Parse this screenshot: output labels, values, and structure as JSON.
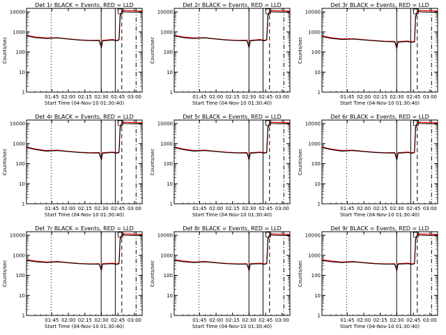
{
  "chart_data": {
    "type": "line",
    "panel_grid": "3x3",
    "x_tick_labels": [
      "01:45",
      "02:00",
      "02:15",
      "02:30",
      "02:45",
      "03:00"
    ],
    "x_tick_minutes": [
      15,
      30,
      45,
      60,
      75,
      90
    ],
    "x_range_minutes": [
      -8,
      97
    ],
    "xlabel": "Start Time (04-Nov-10 01:30:40)",
    "ylabel": "Counts/sec",
    "y_scale": "log",
    "y_range": [
      1,
      15000
    ],
    "y_tick_values": [
      1,
      10,
      100,
      1000,
      10000
    ],
    "y_tick_labels": [
      "1",
      "10",
      "100",
      "1000",
      "10000"
    ],
    "series_colors": {
      "events": "#000000",
      "lld": "#dd0000"
    },
    "vertical_markers": [
      {
        "minute": 14.4,
        "style": "dotted"
      },
      {
        "minute": 59.8,
        "style": "solid"
      },
      {
        "minute": 72.6,
        "style": "solid"
      },
      {
        "minute": 78.5,
        "style": "dashed"
      },
      {
        "minute": 91.5,
        "style": "dashdot"
      }
    ],
    "panels": [
      {
        "title": "Det 1r  BLACK = Events, RED = LLD",
        "curve_x": [
          -8,
          0,
          10,
          20,
          30,
          40,
          50,
          58,
          60,
          61,
          70,
          74,
          76,
          77,
          79,
          82,
          97
        ],
        "events_y": [
          640,
          520,
          470,
          500,
          440,
          390,
          370,
          370,
          160,
          360,
          390,
          360,
          400,
          6000,
          10500,
          10000,
          9500
        ],
        "lld_y": [
          680,
          560,
          500,
          520,
          450,
          400,
          380,
          390,
          180,
          380,
          420,
          380,
          420,
          7000,
          12000,
          11500,
          11000
        ]
      },
      {
        "title": "Det 2r  BLACK = Events, RED = LLD",
        "curve_x": [
          -8,
          0,
          10,
          20,
          30,
          40,
          50,
          58,
          60,
          61,
          70,
          74,
          76,
          77,
          79,
          82,
          97
        ],
        "events_y": [
          640,
          520,
          470,
          500,
          440,
          390,
          370,
          370,
          160,
          360,
          390,
          360,
          400,
          6000,
          10500,
          10000,
          9500
        ],
        "lld_y": [
          680,
          560,
          500,
          520,
          450,
          400,
          380,
          390,
          180,
          380,
          420,
          380,
          420,
          7000,
          12000,
          11500,
          11000
        ]
      },
      {
        "title": "Det 3r  BLACK = Events, RED = LLD",
        "curve_x": [
          -8,
          0,
          10,
          20,
          30,
          40,
          50,
          58,
          60,
          61,
          70,
          74,
          76,
          77,
          79,
          82,
          97
        ],
        "events_y": [
          600,
          480,
          420,
          440,
          400,
          360,
          330,
          320,
          150,
          310,
          330,
          300,
          320,
          5500,
          10500,
          10000,
          9500
        ],
        "lld_y": [
          640,
          520,
          450,
          460,
          410,
          370,
          340,
          340,
          170,
          330,
          350,
          320,
          340,
          6500,
          12000,
          11500,
          11000
        ]
      },
      {
        "title": "Det 4r  BLACK = Events, RED = LLD",
        "curve_x": [
          -8,
          0,
          10,
          20,
          30,
          40,
          50,
          58,
          60,
          61,
          70,
          74,
          76,
          77,
          79,
          82,
          97
        ],
        "events_y": [
          640,
          500,
          420,
          450,
          400,
          360,
          340,
          340,
          150,
          330,
          360,
          330,
          360,
          6000,
          10500,
          10000,
          9500
        ],
        "lld_y": [
          680,
          540,
          450,
          470,
          410,
          370,
          350,
          360,
          170,
          350,
          380,
          350,
          380,
          7000,
          12000,
          11500,
          11000
        ]
      },
      {
        "title": "Det 5r  BLACK = Events, RED = LLD",
        "curve_x": [
          -8,
          0,
          10,
          20,
          30,
          40,
          50,
          58,
          60,
          61,
          70,
          74,
          76,
          77,
          79,
          82,
          97
        ],
        "events_y": [
          640,
          500,
          420,
          450,
          400,
          360,
          340,
          340,
          150,
          330,
          360,
          330,
          360,
          6000,
          10500,
          10000,
          9500
        ],
        "lld_y": [
          680,
          540,
          450,
          470,
          410,
          370,
          350,
          360,
          170,
          350,
          380,
          350,
          380,
          7000,
          12000,
          11500,
          11000
        ]
      },
      {
        "title": "Det 6r  BLACK = Events, RED = LLD",
        "curve_x": [
          -8,
          0,
          10,
          20,
          30,
          40,
          50,
          58,
          60,
          61,
          70,
          74,
          76,
          77,
          79,
          82,
          97
        ],
        "events_y": [
          640,
          500,
          420,
          450,
          400,
          360,
          340,
          340,
          150,
          330,
          360,
          330,
          360,
          6000,
          10500,
          10000,
          9500
        ],
        "lld_y": [
          680,
          540,
          450,
          470,
          410,
          370,
          350,
          360,
          170,
          350,
          380,
          350,
          380,
          7000,
          12000,
          11500,
          11000
        ]
      },
      {
        "title": "Det 7r  BLACK = Events, RED = LLD",
        "curve_x": [
          -8,
          0,
          10,
          20,
          30,
          40,
          50,
          58,
          60,
          61,
          70,
          74,
          76,
          77,
          79,
          82,
          97
        ],
        "events_y": [
          560,
          480,
          430,
          470,
          420,
          380,
          360,
          360,
          170,
          360,
          380,
          350,
          380,
          6000,
          10500,
          10000,
          9500
        ],
        "lld_y": [
          600,
          520,
          460,
          490,
          430,
          390,
          370,
          380,
          190,
          380,
          400,
          370,
          400,
          7000,
          12000,
          11500,
          11000
        ]
      },
      {
        "title": "Det 8r  BLACK = Events, RED = LLD",
        "curve_x": [
          -8,
          0,
          10,
          20,
          30,
          40,
          50,
          58,
          60,
          61,
          70,
          74,
          76,
          77,
          79,
          82,
          97
        ],
        "events_y": [
          560,
          480,
          430,
          470,
          420,
          380,
          360,
          360,
          170,
          360,
          380,
          350,
          380,
          6000,
          10500,
          10000,
          9500
        ],
        "lld_y": [
          600,
          520,
          460,
          490,
          430,
          390,
          370,
          380,
          190,
          380,
          400,
          370,
          400,
          7000,
          12000,
          11500,
          11000
        ]
      },
      {
        "title": "Det 9r  BLACK = Events, RED = LLD",
        "curve_x": [
          -8,
          0,
          10,
          20,
          30,
          40,
          50,
          58,
          60,
          61,
          70,
          74,
          76,
          77,
          79,
          82,
          97
        ],
        "events_y": [
          560,
          480,
          430,
          470,
          420,
          380,
          360,
          360,
          170,
          360,
          380,
          350,
          380,
          6000,
          10500,
          10000,
          9500
        ],
        "lld_y": [
          600,
          520,
          460,
          490,
          430,
          390,
          370,
          380,
          190,
          380,
          400,
          370,
          400,
          7000,
          12000,
          11500,
          11000
        ]
      }
    ]
  }
}
